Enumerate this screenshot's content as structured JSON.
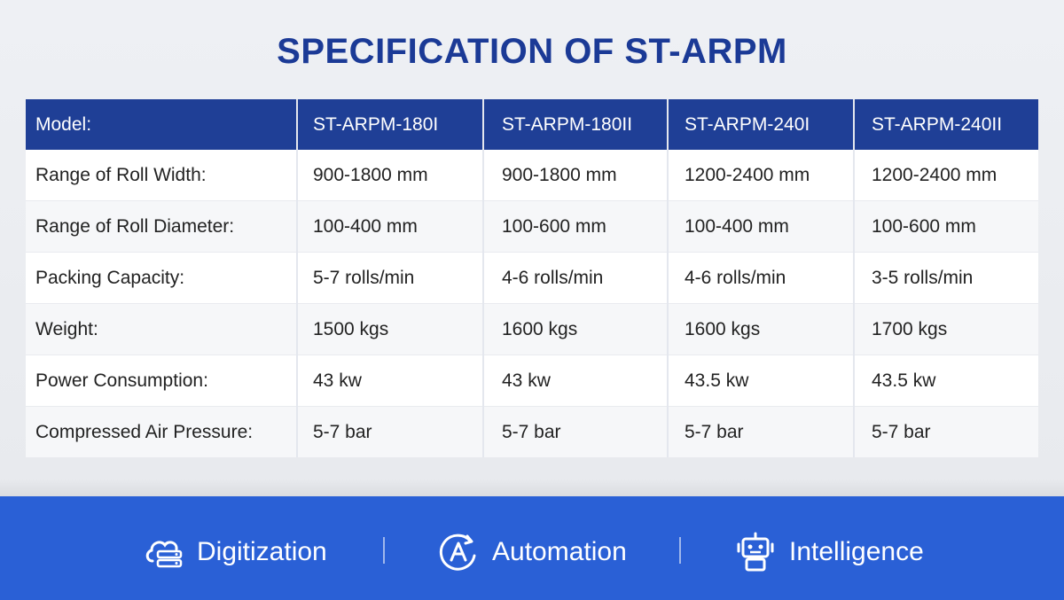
{
  "title": "SPECIFICATION OF ST-ARPM",
  "table": {
    "header": [
      "Model:",
      "ST-ARPM-180I",
      "ST-ARPM-180II",
      "ST-ARPM-240I",
      "ST-ARPM-240II"
    ],
    "rows": [
      [
        "Range of Roll Width:",
        "900-1800 mm",
        "900-1800 mm",
        "1200-2400 mm",
        "1200-2400 mm"
      ],
      [
        "Range of Roll Diameter:",
        "100-400 mm",
        "100-600 mm",
        "100-400 mm",
        "100-600 mm"
      ],
      [
        "Packing Capacity:",
        "5-7 rolls/min",
        "4-6 rolls/min",
        "4-6 rolls/min",
        "3-5 rolls/min"
      ],
      [
        "Weight:",
        "1500 kgs",
        "1600 kgs",
        "1600 kgs",
        "1700 kgs"
      ],
      [
        "Power Consumption:",
        "43 kw",
        "43 kw",
        "43.5 kw",
        "43.5 kw"
      ],
      [
        "Compressed Air Pressure:",
        "5-7 bar",
        "5-7 bar",
        "5-7 bar",
        "5-7 bar"
      ]
    ]
  },
  "features": [
    {
      "label": "Digitization",
      "icon": "cloud-server-icon"
    },
    {
      "label": "Automation",
      "icon": "automation-a-icon"
    },
    {
      "label": "Intelligence",
      "icon": "robot-icon"
    }
  ],
  "colors": {
    "title": "#1b3a96",
    "header_bg": "#1f3f96",
    "bottom_bar": "#2a60d6"
  }
}
